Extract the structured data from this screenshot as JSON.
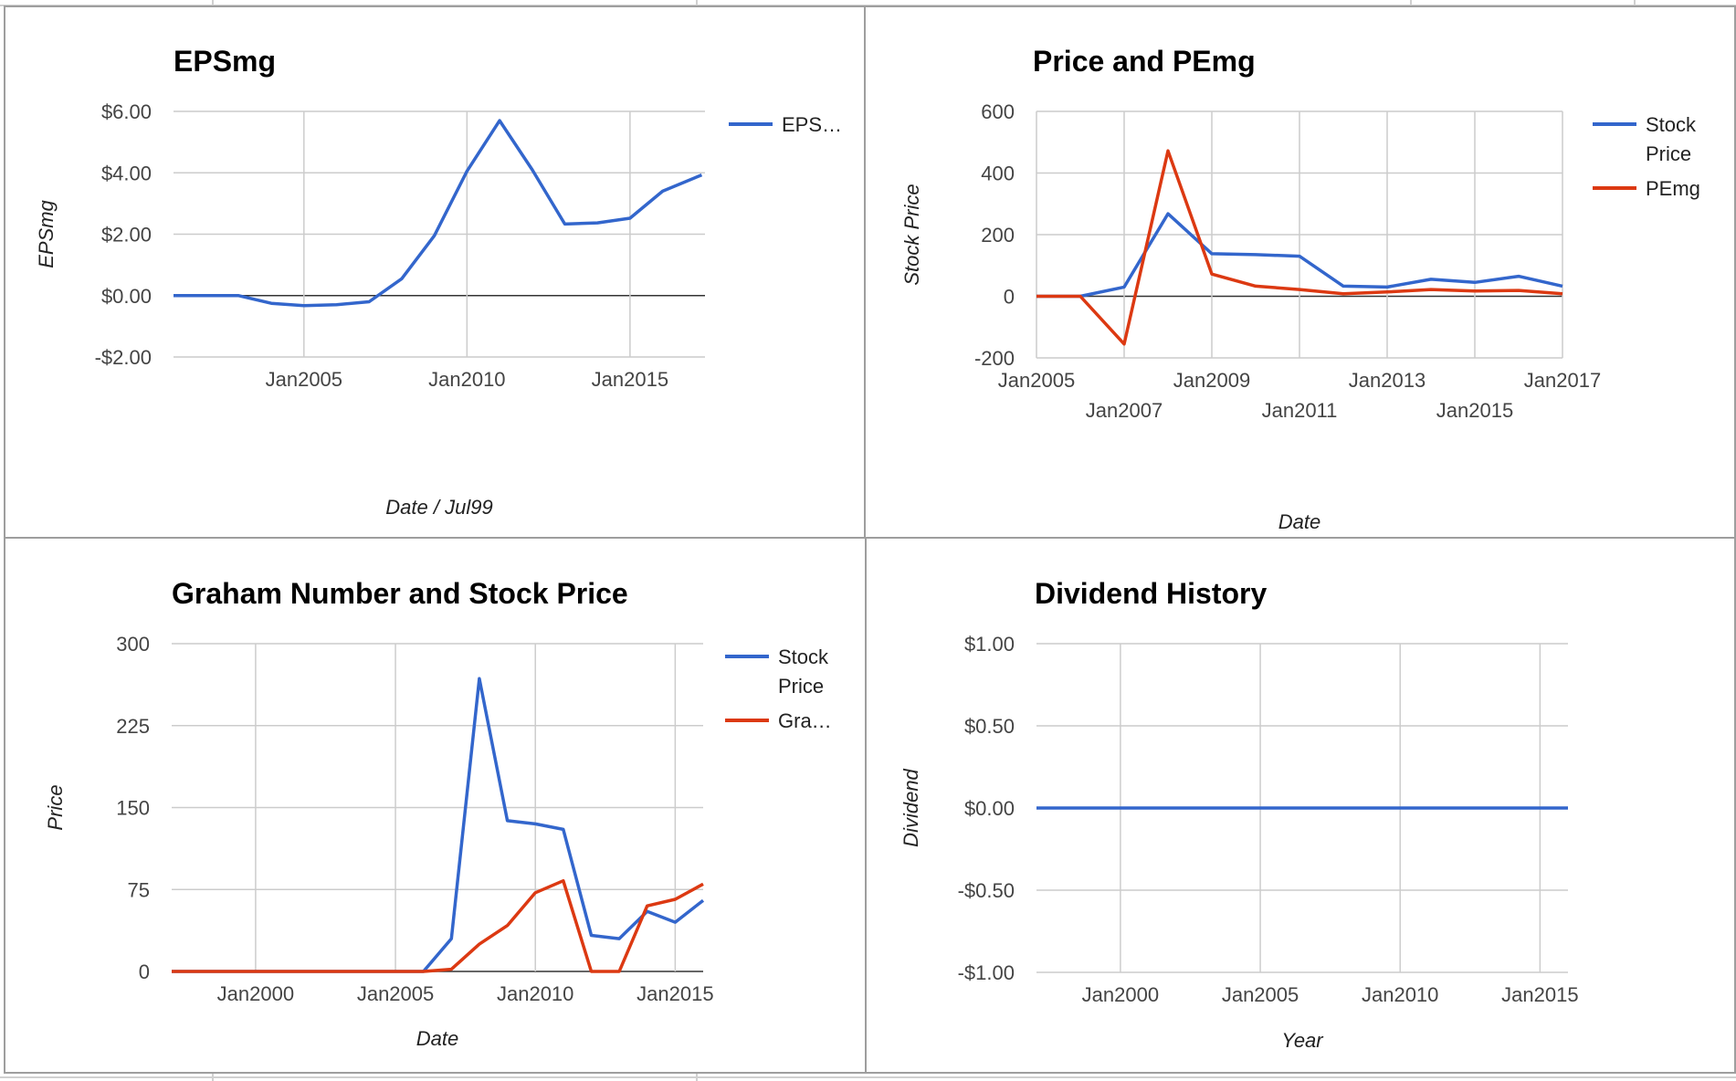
{
  "colors": {
    "blue": "#3366cc",
    "red": "#dc3912",
    "grid": "#cccccc",
    "baseline": "#333333"
  },
  "chart_data": [
    {
      "id": "eps",
      "type": "line",
      "title": "EPSmg",
      "xlabel": "Date / Jul99",
      "ylabel": "EPSmg",
      "xlim": [
        2001,
        2017.3
      ],
      "ylim": [
        -2,
        6
      ],
      "y_ticks": [
        -2,
        0,
        2,
        4,
        6
      ],
      "y_tick_labels": [
        "-$2.00",
        "$0.00",
        "$2.00",
        "$4.00",
        "$6.00"
      ],
      "x_ticks": [
        2005,
        2010,
        2015
      ],
      "x_tick_labels": [
        "Jan2005",
        "Jan2010",
        "Jan2015"
      ],
      "x_label_rows": [
        0,
        0,
        0
      ],
      "legend": "right",
      "series": [
        {
          "name": "EPS…",
          "color": "#3366cc",
          "x": [
            2001,
            2002,
            2003,
            2004,
            2005,
            2006,
            2007,
            2008,
            2009,
            2010,
            2011,
            2012,
            2013,
            2014,
            2015,
            2016,
            2017.2
          ],
          "y": [
            0,
            0,
            0,
            -0.25,
            -0.33,
            -0.3,
            -0.2,
            0.55,
            1.95,
            4.05,
            5.7,
            4.1,
            2.33,
            2.37,
            2.52,
            3.4,
            3.93
          ]
        }
      ]
    },
    {
      "id": "price-pe",
      "type": "line",
      "title": "Price and PEmg",
      "xlabel": "Date",
      "ylabel": "Stock Price",
      "xlim": [
        2005,
        2017
      ],
      "ylim": [
        -200,
        600
      ],
      "y_ticks": [
        -200,
        0,
        200,
        400,
        600
      ],
      "y_tick_labels": [
        "-200",
        "0",
        "200",
        "400",
        "600"
      ],
      "x_ticks": [
        2005,
        2007,
        2009,
        2011,
        2013,
        2015,
        2017
      ],
      "x_tick_labels": [
        "Jan2005",
        "Jan2007",
        "Jan2009",
        "Jan2011",
        "Jan2013",
        "Jan2015",
        "Jan2017"
      ],
      "x_label_rows": [
        0,
        1,
        0,
        1,
        0,
        1,
        0
      ],
      "legend": "right",
      "series": [
        {
          "name": "Stock Price",
          "color": "#3366cc",
          "x": [
            2005,
            2006,
            2007,
            2008,
            2009,
            2010,
            2011,
            2012,
            2013,
            2014,
            2015,
            2016,
            2017
          ],
          "y": [
            0,
            0,
            30,
            268,
            138,
            135,
            130,
            33,
            30,
            55,
            45,
            65,
            33
          ]
        },
        {
          "name": "PEmg",
          "color": "#dc3912",
          "x": [
            2005,
            2006,
            2007,
            2008,
            2009,
            2010,
            2011,
            2012,
            2013,
            2014,
            2015,
            2016,
            2017
          ],
          "y": [
            0,
            0,
            -155,
            472,
            72,
            33,
            22,
            8,
            14,
            22,
            17,
            19,
            8
          ]
        }
      ]
    },
    {
      "id": "graham",
      "type": "line",
      "title": "Graham Number and Stock Price",
      "xlabel": "Date",
      "ylabel": "Price",
      "xlim": [
        1997,
        2016
      ],
      "ylim": [
        0,
        300
      ],
      "y_ticks": [
        0,
        75,
        150,
        225,
        300
      ],
      "y_tick_labels": [
        "0",
        "75",
        "150",
        "225",
        "300"
      ],
      "x_ticks": [
        2000,
        2005,
        2010,
        2015
      ],
      "x_tick_labels": [
        "Jan2000",
        "Jan2005",
        "Jan2010",
        "Jan2015"
      ],
      "x_label_rows": [
        0,
        0,
        0,
        0
      ],
      "legend": "right",
      "series": [
        {
          "name": "Stock Price",
          "color": "#3366cc",
          "x": [
            1997,
            1998,
            1999,
            2000,
            2001,
            2002,
            2003,
            2004,
            2005,
            2006,
            2007,
            2008,
            2009,
            2010,
            2011,
            2012,
            2013,
            2014,
            2015,
            2016
          ],
          "y": [
            0,
            0,
            0,
            0,
            0,
            0,
            0,
            0,
            0,
            0,
            30,
            268,
            138,
            135,
            130,
            33,
            30,
            55,
            45,
            65
          ]
        },
        {
          "name": "Gra…",
          "color": "#dc3912",
          "x": [
            1997,
            1998,
            1999,
            2000,
            2001,
            2002,
            2003,
            2004,
            2005,
            2006,
            2007,
            2008,
            2009,
            2010,
            2011,
            2012,
            2013,
            2014,
            2015,
            2016
          ],
          "y": [
            0,
            0,
            0,
            0,
            0,
            0,
            0,
            0,
            0,
            0,
            2,
            25,
            42,
            72,
            83,
            0,
            0,
            60,
            66,
            80
          ]
        }
      ]
    },
    {
      "id": "dividend",
      "type": "line",
      "title": "Dividend History",
      "xlabel": "Year",
      "ylabel": "Dividend",
      "xlim": [
        1997,
        2016
      ],
      "ylim": [
        -1,
        1
      ],
      "y_ticks": [
        -1,
        -0.5,
        0,
        0.5,
        1
      ],
      "y_tick_labels": [
        "-$1.00",
        "-$0.50",
        "$0.00",
        "$0.50",
        "$1.00"
      ],
      "x_ticks": [
        2000,
        2005,
        2010,
        2015
      ],
      "x_tick_labels": [
        "Jan2000",
        "Jan2005",
        "Jan2010",
        "Jan2015"
      ],
      "x_label_rows": [
        0,
        0,
        0,
        0
      ],
      "legend": "none",
      "series": [
        {
          "name": "",
          "color": "#3366cc",
          "x": [
            1997,
            2016
          ],
          "y": [
            0,
            0
          ]
        }
      ]
    }
  ]
}
